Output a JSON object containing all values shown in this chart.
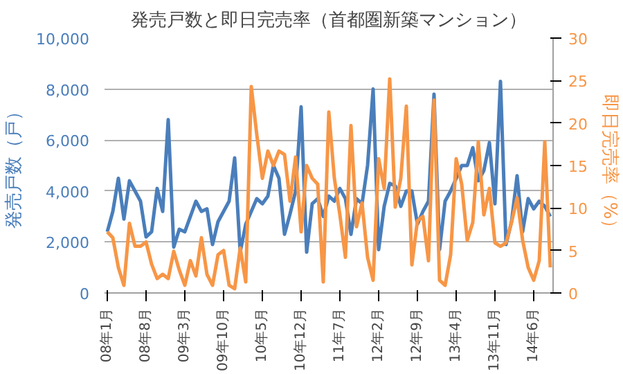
{
  "chart_data": {
    "type": "line",
    "title": "発売戸数と即日完売率（首都圏新築マンション）",
    "ylabel": "発売戸数（戸）",
    "y2label": "即日完売率（%）",
    "categories": [
      "08年1月",
      null,
      null,
      null,
      null,
      null,
      null,
      "08年8月",
      null,
      null,
      null,
      null,
      null,
      null,
      "09年3月",
      null,
      null,
      null,
      null,
      null,
      null,
      "09年10月",
      null,
      null,
      null,
      null,
      null,
      null,
      "10年5月",
      null,
      null,
      null,
      null,
      null,
      null,
      "10年12月",
      null,
      null,
      null,
      null,
      null,
      null,
      "11年7月",
      null,
      null,
      null,
      null,
      null,
      null,
      "12年2月",
      null,
      null,
      null,
      null,
      null,
      null,
      "12年9月",
      null,
      null,
      null,
      null,
      null,
      null,
      "13年4月",
      null,
      null,
      null,
      null,
      null,
      null,
      "13年11月",
      null,
      null,
      null,
      null,
      null,
      null,
      "14年6月",
      null,
      null,
      null
    ],
    "series": [
      {
        "color": "#4a7ebb",
        "values": [
          2400,
          3200,
          4500,
          2900,
          4400,
          4000,
          3600,
          2200,
          2400,
          4100,
          3200,
          6800,
          1800,
          2500,
          2400,
          3000,
          3600,
          3200,
          3300,
          1900,
          2800,
          3200,
          3600,
          5300,
          1600,
          2700,
          3200,
          3700,
          3500,
          3800,
          5000,
          4500,
          2300,
          3100,
          4000,
          7300,
          1600,
          3500,
          3700,
          3000,
          3800,
          3600,
          4100,
          3700,
          2300,
          3700,
          3500,
          5000,
          8000,
          1700,
          3400,
          4300,
          4200,
          3400,
          4000,
          4000,
          2700,
          3200,
          3600,
          7800,
          1700,
          3600,
          4000,
          4500,
          5000,
          5000,
          5700,
          4400,
          4800,
          5900,
          3500,
          8300,
          1900,
          2800,
          4600,
          2400,
          3700,
          3300,
          3600,
          3400,
          3000
        ]
      },
      {
        "color": "#f79646",
        "axis": "y2",
        "values": [
          7.2,
          6.5,
          3,
          0.9,
          8.2,
          5.5,
          5.5,
          6,
          3.4,
          1.7,
          2.2,
          1.7,
          4.9,
          2.7,
          0.9,
          3.8,
          2,
          6.5,
          2.2,
          0.9,
          4.5,
          5,
          0.9,
          0.5,
          5.3,
          1.3,
          24.3,
          18.6,
          13.5,
          16.7,
          15,
          16.7,
          16.3,
          10.8,
          16,
          7.2,
          15,
          13.5,
          12.8,
          1.3,
          21.3,
          13.5,
          9.2,
          4.2,
          19.7,
          7.8,
          10.6,
          4.2,
          1.5,
          15.8,
          12.3,
          25.2,
          10.1,
          13.5,
          22,
          3.3,
          8.5,
          9,
          3.8,
          22.7,
          1.5,
          0.9,
          4.5,
          15.8,
          12.8,
          6.2,
          8.3,
          17.8,
          9.2,
          12.3,
          5.9,
          5.5,
          5.9,
          8.3,
          11.2,
          6.2,
          3,
          1.5,
          3.8,
          17.8,
          3
        ]
      }
    ],
    "ylim": [
      0,
      10000
    ],
    "yticks": [
      0,
      {
        "value": 2000,
        "label": "2,000"
      },
      {
        "value": 4000,
        "label": "4,000"
      },
      {
        "value": 6000,
        "label": "6,000"
      },
      {
        "value": 8000,
        "label": "8,000"
      },
      {
        "value": 10000,
        "label": "10,000"
      }
    ],
    "y2lim": [
      0,
      30
    ],
    "y2ticks": [
      0,
      5,
      10,
      15,
      20,
      25,
      30
    ],
    "grid": "y",
    "line_style": "solid"
  }
}
